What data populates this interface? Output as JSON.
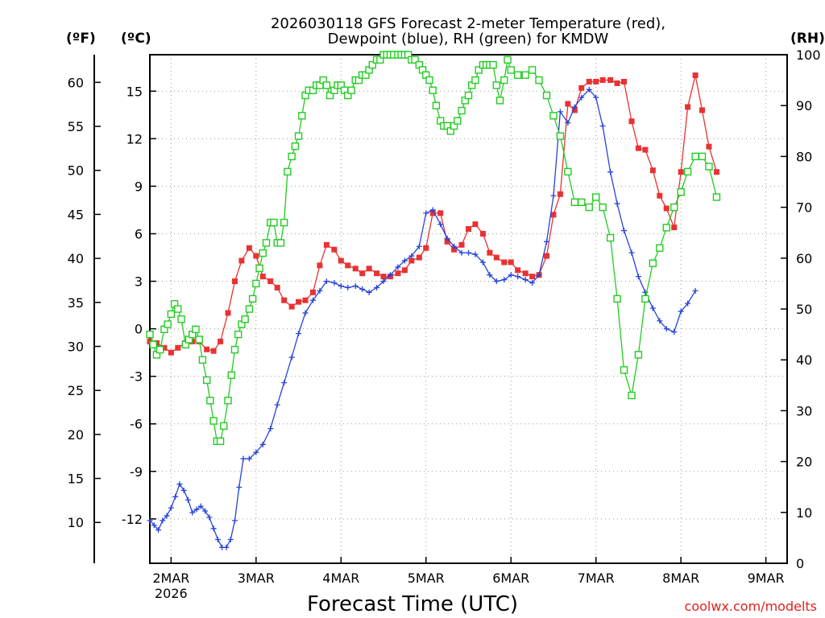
{
  "chart_data": {
    "type": "line",
    "title_lines": [
      "2026030118 GFS Forecast 2-meter Temperature (red),",
      "Dewpoint (blue), RH (green) for KMDW"
    ],
    "xlabel": "Forecast Time (UTC)",
    "credit": "coolwx.com/modelts",
    "units": {
      "fahrenheit": "(ºF)",
      "celsius": "(ºC)",
      "rh": "(RH)"
    },
    "x_unit": "days since 2026-03-01 18Z",
    "xlim": [
      0,
      7.5
    ],
    "x_ticks": [
      {
        "x": 0.25,
        "label": "2MAR",
        "sublabel": "2026"
      },
      {
        "x": 1.25,
        "label": "3MAR",
        "sublabel": ""
      },
      {
        "x": 2.25,
        "label": "4MAR",
        "sublabel": ""
      },
      {
        "x": 3.25,
        "label": "5MAR",
        "sublabel": ""
      },
      {
        "x": 4.25,
        "label": "6MAR",
        "sublabel": ""
      },
      {
        "x": 5.25,
        "label": "7MAR",
        "sublabel": ""
      },
      {
        "x": 6.25,
        "label": "8MAR",
        "sublabel": ""
      },
      {
        "x": 7.25,
        "label": "9MAR",
        "sublabel": ""
      }
    ],
    "celsius_axis": {
      "ylim": [
        -14.8,
        17.3
      ],
      "ticks": [
        -12,
        -9,
        -6,
        -3,
        0,
        3,
        6,
        9,
        12,
        15
      ]
    },
    "fahrenheit_axis": {
      "ticks": [
        10,
        15,
        20,
        25,
        30,
        35,
        40,
        45,
        50,
        55,
        60
      ]
    },
    "rh_axis": {
      "ylim": [
        0,
        100
      ],
      "ticks": [
        0,
        10,
        20,
        30,
        40,
        50,
        60,
        70,
        80,
        90,
        100
      ]
    },
    "grid": true,
    "series": [
      {
        "name": "2-meter Temperature",
        "units": "degC",
        "color": "#e83232",
        "marker": "filled-square",
        "points": [
          [
            0.0,
            -0.8
          ],
          [
            0.08,
            -0.9
          ],
          [
            0.17,
            -1.2
          ],
          [
            0.25,
            -1.5
          ],
          [
            0.33,
            -1.2
          ],
          [
            0.42,
            -0.9
          ],
          [
            0.5,
            -0.8
          ],
          [
            0.58,
            -0.8
          ],
          [
            0.67,
            -1.3
          ],
          [
            0.75,
            -1.4
          ],
          [
            0.83,
            -0.8
          ],
          [
            0.92,
            1.0
          ],
          [
            1.0,
            3.0
          ],
          [
            1.08,
            4.3
          ],
          [
            1.17,
            5.1
          ],
          [
            1.25,
            4.6
          ],
          [
            1.33,
            3.3
          ],
          [
            1.42,
            3.0
          ],
          [
            1.5,
            2.6
          ],
          [
            1.58,
            1.8
          ],
          [
            1.67,
            1.4
          ],
          [
            1.75,
            1.7
          ],
          [
            1.83,
            1.8
          ],
          [
            1.92,
            2.3
          ],
          [
            2.0,
            4.0
          ],
          [
            2.08,
            5.3
          ],
          [
            2.17,
            5.0
          ],
          [
            2.25,
            4.3
          ],
          [
            2.33,
            4.0
          ],
          [
            2.42,
            3.8
          ],
          [
            2.5,
            3.5
          ],
          [
            2.58,
            3.8
          ],
          [
            2.67,
            3.5
          ],
          [
            2.75,
            3.3
          ],
          [
            2.83,
            3.3
          ],
          [
            2.92,
            3.5
          ],
          [
            3.0,
            3.7
          ],
          [
            3.08,
            4.3
          ],
          [
            3.17,
            4.5
          ],
          [
            3.25,
            5.1
          ],
          [
            3.33,
            7.3
          ],
          [
            3.42,
            7.3
          ],
          [
            3.5,
            5.5
          ],
          [
            3.58,
            5.0
          ],
          [
            3.67,
            5.3
          ],
          [
            3.75,
            6.3
          ],
          [
            3.83,
            6.6
          ],
          [
            3.92,
            6.0
          ],
          [
            4.0,
            4.8
          ],
          [
            4.08,
            4.5
          ],
          [
            4.17,
            4.2
          ],
          [
            4.25,
            4.2
          ],
          [
            4.33,
            3.7
          ],
          [
            4.42,
            3.5
          ],
          [
            4.5,
            3.3
          ],
          [
            4.58,
            3.4
          ],
          [
            4.67,
            4.6
          ],
          [
            4.75,
            7.2
          ],
          [
            4.83,
            8.5
          ],
          [
            4.92,
            14.2
          ],
          [
            5.0,
            13.8
          ],
          [
            5.08,
            15.2
          ],
          [
            5.17,
            15.6
          ],
          [
            5.25,
            15.6
          ],
          [
            5.33,
            15.7
          ],
          [
            5.42,
            15.7
          ],
          [
            5.5,
            15.5
          ],
          [
            5.58,
            15.6
          ],
          [
            5.67,
            13.1
          ],
          [
            5.75,
            11.4
          ],
          [
            5.83,
            11.3
          ],
          [
            5.92,
            10.0
          ],
          [
            6.0,
            8.4
          ],
          [
            6.08,
            7.6
          ],
          [
            6.17,
            6.4
          ],
          [
            6.25,
            9.9
          ],
          [
            6.33,
            14.0
          ],
          [
            6.42,
            16.0
          ],
          [
            6.5,
            13.8
          ],
          [
            6.58,
            11.5
          ],
          [
            6.67,
            9.9
          ]
        ]
      },
      {
        "name": "Dewpoint",
        "units": "degC",
        "color": "#2644d8",
        "marker": "plus",
        "points": [
          [
            0.0,
            -12.1
          ],
          [
            0.05,
            -12.4
          ],
          [
            0.1,
            -12.7
          ],
          [
            0.15,
            -12.1
          ],
          [
            0.2,
            -11.8
          ],
          [
            0.25,
            -11.3
          ],
          [
            0.3,
            -10.6
          ],
          [
            0.35,
            -9.8
          ],
          [
            0.4,
            -10.2
          ],
          [
            0.45,
            -10.8
          ],
          [
            0.5,
            -11.6
          ],
          [
            0.55,
            -11.4
          ],
          [
            0.6,
            -11.2
          ],
          [
            0.65,
            -11.5
          ],
          [
            0.7,
            -11.9
          ],
          [
            0.75,
            -12.6
          ],
          [
            0.8,
            -13.3
          ],
          [
            0.85,
            -13.8
          ],
          [
            0.9,
            -13.8
          ],
          [
            0.95,
            -13.3
          ],
          [
            1.0,
            -12.1
          ],
          [
            1.05,
            -10.0
          ],
          [
            1.1,
            -8.2
          ],
          [
            1.17,
            -8.2
          ],
          [
            1.25,
            -7.8
          ],
          [
            1.33,
            -7.3
          ],
          [
            1.42,
            -6.3
          ],
          [
            1.5,
            -4.8
          ],
          [
            1.58,
            -3.4
          ],
          [
            1.67,
            -1.8
          ],
          [
            1.75,
            -0.3
          ],
          [
            1.83,
            1.0
          ],
          [
            1.92,
            1.8
          ],
          [
            2.0,
            2.4
          ],
          [
            2.08,
            3.0
          ],
          [
            2.17,
            2.9
          ],
          [
            2.25,
            2.7
          ],
          [
            2.33,
            2.6
          ],
          [
            2.42,
            2.7
          ],
          [
            2.5,
            2.5
          ],
          [
            2.58,
            2.3
          ],
          [
            2.67,
            2.6
          ],
          [
            2.75,
            3.0
          ],
          [
            2.83,
            3.4
          ],
          [
            2.92,
            3.9
          ],
          [
            3.0,
            4.3
          ],
          [
            3.08,
            4.6
          ],
          [
            3.17,
            5.2
          ],
          [
            3.25,
            7.3
          ],
          [
            3.33,
            7.5
          ],
          [
            3.42,
            6.6
          ],
          [
            3.5,
            5.7
          ],
          [
            3.58,
            5.2
          ],
          [
            3.67,
            4.8
          ],
          [
            3.75,
            4.8
          ],
          [
            3.83,
            4.7
          ],
          [
            3.92,
            4.2
          ],
          [
            4.0,
            3.4
          ],
          [
            4.08,
            3.0
          ],
          [
            4.17,
            3.1
          ],
          [
            4.25,
            3.4
          ],
          [
            4.33,
            3.3
          ],
          [
            4.42,
            3.1
          ],
          [
            4.5,
            2.9
          ],
          [
            4.58,
            3.4
          ],
          [
            4.67,
            5.5
          ],
          [
            4.75,
            8.4
          ],
          [
            4.83,
            13.7
          ],
          [
            4.92,
            13.0
          ],
          [
            5.0,
            14.0
          ],
          [
            5.08,
            14.6
          ],
          [
            5.17,
            15.1
          ],
          [
            5.25,
            14.6
          ],
          [
            5.33,
            12.8
          ],
          [
            5.42,
            9.9
          ],
          [
            5.5,
            7.9
          ],
          [
            5.58,
            6.2
          ],
          [
            5.67,
            4.8
          ],
          [
            5.75,
            3.3
          ],
          [
            5.83,
            2.3
          ],
          [
            5.92,
            1.3
          ],
          [
            6.0,
            0.5
          ],
          [
            6.08,
            0.0
          ],
          [
            6.17,
            -0.2
          ],
          [
            6.25,
            1.1
          ],
          [
            6.33,
            1.6
          ],
          [
            6.42,
            2.4
          ]
        ]
      },
      {
        "name": "RH",
        "units": "percent",
        "color": "#22cc22",
        "marker": "open-square",
        "points": [
          [
            0.0,
            45
          ],
          [
            0.04,
            43
          ],
          [
            0.08,
            41
          ],
          [
            0.12,
            42
          ],
          [
            0.17,
            46
          ],
          [
            0.21,
            47
          ],
          [
            0.25,
            49
          ],
          [
            0.29,
            51
          ],
          [
            0.33,
            50
          ],
          [
            0.37,
            48
          ],
          [
            0.42,
            43
          ],
          [
            0.46,
            44
          ],
          [
            0.5,
            45
          ],
          [
            0.54,
            46
          ],
          [
            0.58,
            44
          ],
          [
            0.62,
            40
          ],
          [
            0.67,
            36
          ],
          [
            0.71,
            32
          ],
          [
            0.75,
            28
          ],
          [
            0.79,
            24
          ],
          [
            0.83,
            24
          ],
          [
            0.87,
            27
          ],
          [
            0.92,
            32
          ],
          [
            0.96,
            37
          ],
          [
            1.0,
            42
          ],
          [
            1.04,
            45
          ],
          [
            1.08,
            47
          ],
          [
            1.12,
            48
          ],
          [
            1.17,
            50
          ],
          [
            1.21,
            52
          ],
          [
            1.25,
            55
          ],
          [
            1.29,
            58
          ],
          [
            1.33,
            61
          ],
          [
            1.37,
            63
          ],
          [
            1.42,
            67
          ],
          [
            1.46,
            67
          ],
          [
            1.5,
            63
          ],
          [
            1.54,
            63
          ],
          [
            1.58,
            67
          ],
          [
            1.62,
            77
          ],
          [
            1.67,
            80
          ],
          [
            1.71,
            82
          ],
          [
            1.75,
            84
          ],
          [
            1.79,
            88
          ],
          [
            1.83,
            92
          ],
          [
            1.87,
            93
          ],
          [
            1.92,
            93
          ],
          [
            1.96,
            94
          ],
          [
            2.0,
            94
          ],
          [
            2.04,
            95
          ],
          [
            2.08,
            94
          ],
          [
            2.12,
            92
          ],
          [
            2.17,
            93
          ],
          [
            2.21,
            94
          ],
          [
            2.25,
            94
          ],
          [
            2.29,
            93
          ],
          [
            2.33,
            92
          ],
          [
            2.37,
            93
          ],
          [
            2.42,
            95
          ],
          [
            2.46,
            95
          ],
          [
            2.5,
            96
          ],
          [
            2.54,
            96
          ],
          [
            2.58,
            97
          ],
          [
            2.62,
            98
          ],
          [
            2.67,
            99
          ],
          [
            2.71,
            99
          ],
          [
            2.75,
            100
          ],
          [
            2.79,
            100
          ],
          [
            2.83,
            100
          ],
          [
            2.87,
            100
          ],
          [
            2.92,
            100
          ],
          [
            2.96,
            100
          ],
          [
            3.0,
            100
          ],
          [
            3.04,
            100
          ],
          [
            3.08,
            99
          ],
          [
            3.12,
            99
          ],
          [
            3.17,
            98
          ],
          [
            3.21,
            97
          ],
          [
            3.25,
            96
          ],
          [
            3.29,
            95
          ],
          [
            3.33,
            93
          ],
          [
            3.37,
            90
          ],
          [
            3.42,
            87
          ],
          [
            3.46,
            86
          ],
          [
            3.5,
            86
          ],
          [
            3.54,
            85
          ],
          [
            3.58,
            86
          ],
          [
            3.62,
            87
          ],
          [
            3.67,
            89
          ],
          [
            3.71,
            91
          ],
          [
            3.75,
            92
          ],
          [
            3.79,
            94
          ],
          [
            3.83,
            95
          ],
          [
            3.87,
            97
          ],
          [
            3.92,
            98
          ],
          [
            3.96,
            98
          ],
          [
            4.0,
            98
          ],
          [
            4.04,
            98
          ],
          [
            4.08,
            94
          ],
          [
            4.12,
            91
          ],
          [
            4.17,
            95
          ],
          [
            4.21,
            99
          ],
          [
            4.25,
            97
          ],
          [
            4.33,
            96
          ],
          [
            4.42,
            96
          ],
          [
            4.5,
            97
          ],
          [
            4.58,
            95
          ],
          [
            4.67,
            92
          ],
          [
            4.75,
            88
          ],
          [
            4.83,
            84
          ],
          [
            4.92,
            77
          ],
          [
            5.0,
            71
          ],
          [
            5.08,
            71
          ],
          [
            5.17,
            70
          ],
          [
            5.25,
            72
          ],
          [
            5.33,
            70
          ],
          [
            5.42,
            64
          ],
          [
            5.5,
            52
          ],
          [
            5.58,
            38
          ],
          [
            5.67,
            33
          ],
          [
            5.75,
            41
          ],
          [
            5.83,
            52
          ],
          [
            5.92,
            59
          ],
          [
            6.0,
            62
          ],
          [
            6.08,
            66
          ],
          [
            6.17,
            70
          ],
          [
            6.25,
            73
          ],
          [
            6.33,
            77
          ],
          [
            6.42,
            80
          ],
          [
            6.5,
            80
          ],
          [
            6.58,
            78
          ],
          [
            6.67,
            72
          ]
        ]
      }
    ]
  }
}
